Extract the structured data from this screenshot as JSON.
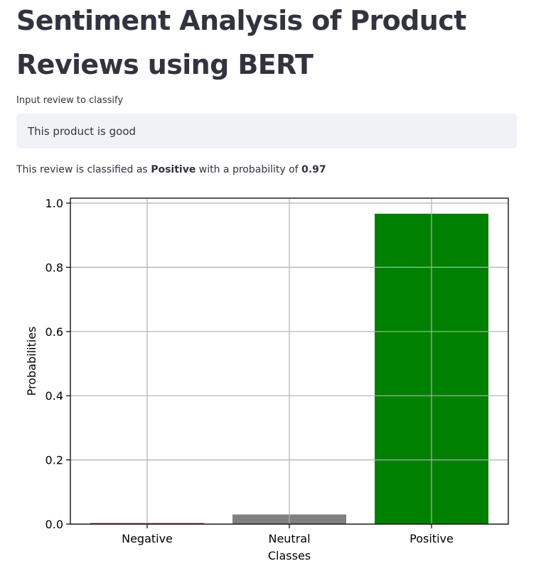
{
  "header": {
    "title": "Sentiment Analysis of Product Reviews using BERT"
  },
  "form": {
    "input_label": "Input review to classify",
    "input_value": "This product is good"
  },
  "result": {
    "prefix": "This review is classified as",
    "label": "Positive",
    "middle": "with a probability of",
    "probability": "0.97"
  },
  "chart_data": {
    "type": "bar",
    "categories": [
      "Negative",
      "Neutral",
      "Positive"
    ],
    "values": [
      0.003,
      0.03,
      0.967
    ],
    "colors": [
      "#8b0000",
      "#808080",
      "#008000"
    ],
    "xlabel": "Classes",
    "ylabel": "Probabilities",
    "ylim": [
      0,
      1.0
    ],
    "yticks": [
      0.0,
      0.2,
      0.4,
      0.6,
      0.8,
      1.0
    ],
    "ytick_labels": [
      "0.0",
      "0.2",
      "0.4",
      "0.6",
      "0.8",
      "1.0"
    ],
    "grid": true,
    "legend": "none"
  }
}
